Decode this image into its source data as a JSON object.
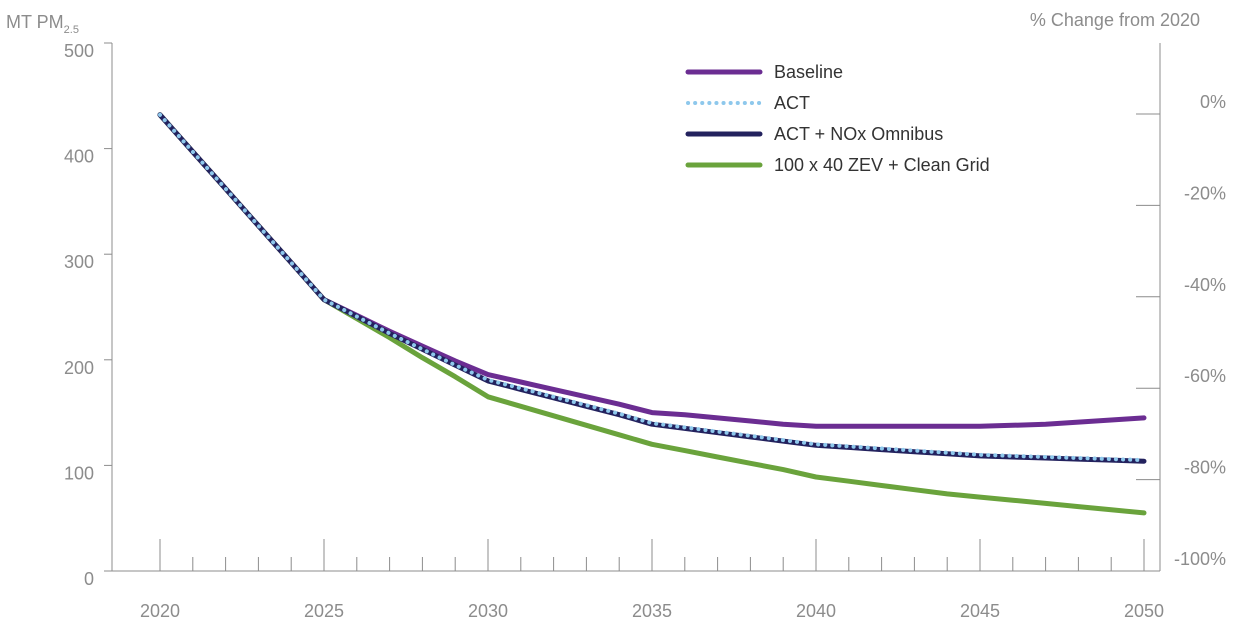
{
  "chart_data": {
    "type": "line",
    "y_left_label": "MT PM",
    "y_left_label_sub": "2.5",
    "y_right_label": "% Change from 2020",
    "x": [
      2020,
      2021,
      2022,
      2023,
      2024,
      2025,
      2026,
      2027,
      2028,
      2029,
      2030,
      2031,
      2032,
      2033,
      2034,
      2035,
      2036,
      2037,
      2038,
      2039,
      2040,
      2041,
      2042,
      2043,
      2044,
      2045,
      2046,
      2047,
      2048,
      2049,
      2050
    ],
    "x_ticks": [
      "2020",
      "2025",
      "2030",
      "2035",
      "2040",
      "2045",
      "2050"
    ],
    "y_left_ticks": [
      "0",
      "100",
      "200",
      "300",
      "400",
      "500"
    ],
    "y_left_lim": [
      0,
      500
    ],
    "y_right_ticks": [
      "0%",
      "-20%",
      "-40%",
      "-60%",
      "-80%",
      "-100%"
    ],
    "y_right_values": [
      0,
      -20,
      -40,
      -60,
      -80,
      -100
    ],
    "y_right_lim": [
      -100,
      0
    ],
    "legend_position": "top-right",
    "series": [
      {
        "name": "Baseline",
        "color": "#6b2d92",
        "style": "solid",
        "values": [
          432,
          397,
          362,
          327,
          292,
          257,
          242,
          227,
          213,
          199,
          186,
          179,
          172,
          165,
          158,
          150,
          148,
          145,
          142,
          139,
          137,
          137,
          137,
          137,
          137,
          137,
          138,
          139,
          141,
          143,
          145
        ]
      },
      {
        "name": "ACT",
        "color": "#8ec8ec",
        "style": "dotted",
        "values": [
          432,
          397,
          362,
          327,
          292,
          257,
          241,
          225,
          210,
          195,
          181,
          173,
          165,
          157,
          149,
          140,
          136,
          132,
          128,
          124,
          120,
          118,
          116,
          114,
          112,
          110,
          109,
          108,
          107,
          106,
          105
        ]
      },
      {
        "name": "ACT + NOx Omnibus",
        "color": "#23225e",
        "style": "solid",
        "values": [
          432,
          397,
          362,
          327,
          292,
          257,
          241,
          225,
          210,
          195,
          180,
          172,
          164,
          156,
          148,
          139,
          135,
          131,
          127,
          123,
          119,
          117,
          115,
          113,
          111,
          109,
          108,
          107,
          106,
          105,
          104
        ]
      },
      {
        "name": "100 x 40 ZEV + Clean Grid",
        "color": "#6aa33c",
        "style": "solid",
        "values": [
          432,
          397,
          362,
          327,
          292,
          257,
          239,
          221,
          202,
          184,
          165,
          156,
          147,
          138,
          129,
          120,
          114,
          108,
          102,
          96,
          89,
          85,
          81,
          77,
          73,
          70,
          67,
          64,
          61,
          58,
          55
        ]
      }
    ]
  }
}
